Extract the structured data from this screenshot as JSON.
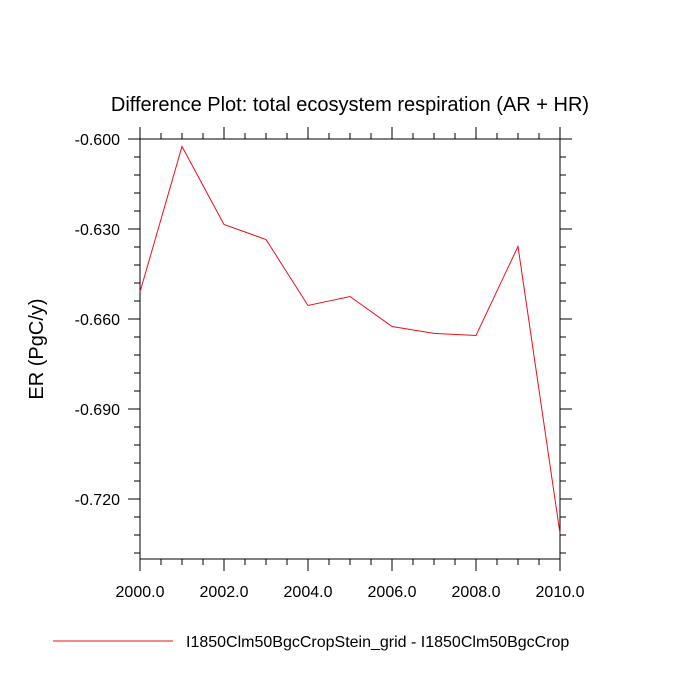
{
  "chart_data": {
    "type": "line",
    "title": "Difference Plot: total ecosystem respiration (AR + HR)",
    "xlabel": "",
    "ylabel": "ER  (PgC/y)",
    "xlim": [
      2000,
      2010
    ],
    "ylim": [
      -0.74,
      -0.6
    ],
    "x_ticks": [
      "2000.0",
      "2002.0",
      "2004.0",
      "2006.0",
      "2008.0",
      "2010.0"
    ],
    "y_ticks": [
      "-0.600",
      "-0.630",
      "-0.660",
      "-0.690",
      "-0.720"
    ],
    "grid": false,
    "legend_position": "bottom",
    "series": [
      {
        "name": "I1850Clm50BgcCropStein_grid - I1850Clm50BgcCrop",
        "color": "#e8101a",
        "x": [
          2000,
          2001,
          2002,
          2003,
          2004,
          2005,
          2006,
          2007,
          2008,
          2009,
          2010
        ],
        "y": [
          -0.651,
          -0.6025,
          -0.6285,
          -0.6335,
          -0.6555,
          -0.6525,
          -0.6625,
          -0.6648,
          -0.6655,
          -0.6358,
          -0.7315
        ]
      }
    ]
  }
}
